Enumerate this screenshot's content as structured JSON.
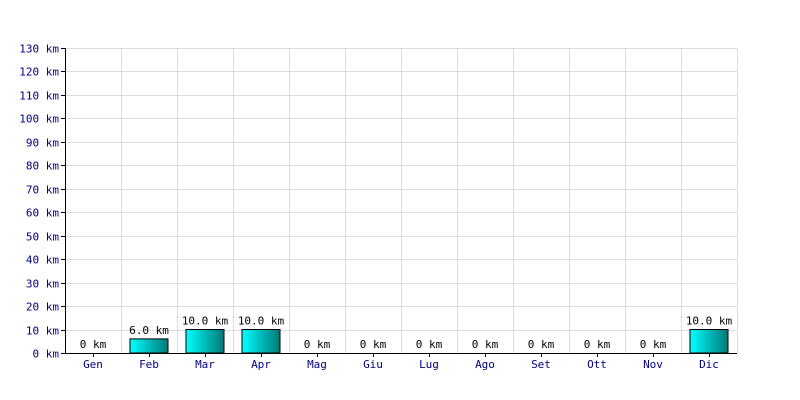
{
  "chart_data": {
    "type": "bar",
    "categories": [
      "Gen",
      "Feb",
      "Mar",
      "Apr",
      "Mag",
      "Giu",
      "Lug",
      "Ago",
      "Set",
      "Ott",
      "Nov",
      "Dic"
    ],
    "values": [
      0,
      6.0,
      10.0,
      10.0,
      0,
      0,
      0,
      0,
      0,
      0,
      0,
      10.0
    ],
    "value_labels": [
      "0 km",
      "6.0 km",
      "10.0 km",
      "10.0 km",
      "0 km",
      "0 km",
      "0 km",
      "0 km",
      "0 km",
      "0 km",
      "0 km",
      "10.0 km"
    ],
    "title": "",
    "xlabel": "",
    "ylabel": "",
    "ylim": [
      0,
      130
    ],
    "yticks": [
      0,
      10,
      20,
      30,
      40,
      50,
      60,
      70,
      80,
      90,
      100,
      110,
      120,
      130
    ],
    "ytick_labels": [
      "0 km",
      "10 km",
      "20 km",
      "30 km",
      "40 km",
      "50 km",
      "60 km",
      "70 km",
      "80 km",
      "90 km",
      "100 km",
      "110 km",
      "120 km",
      "130 km"
    ],
    "grid": true,
    "legend": "none",
    "colors": {
      "bar_light": "#00ffff",
      "bar_dark": "#007878",
      "grid": "#dcdcdc",
      "tick_text": "#000080"
    }
  }
}
